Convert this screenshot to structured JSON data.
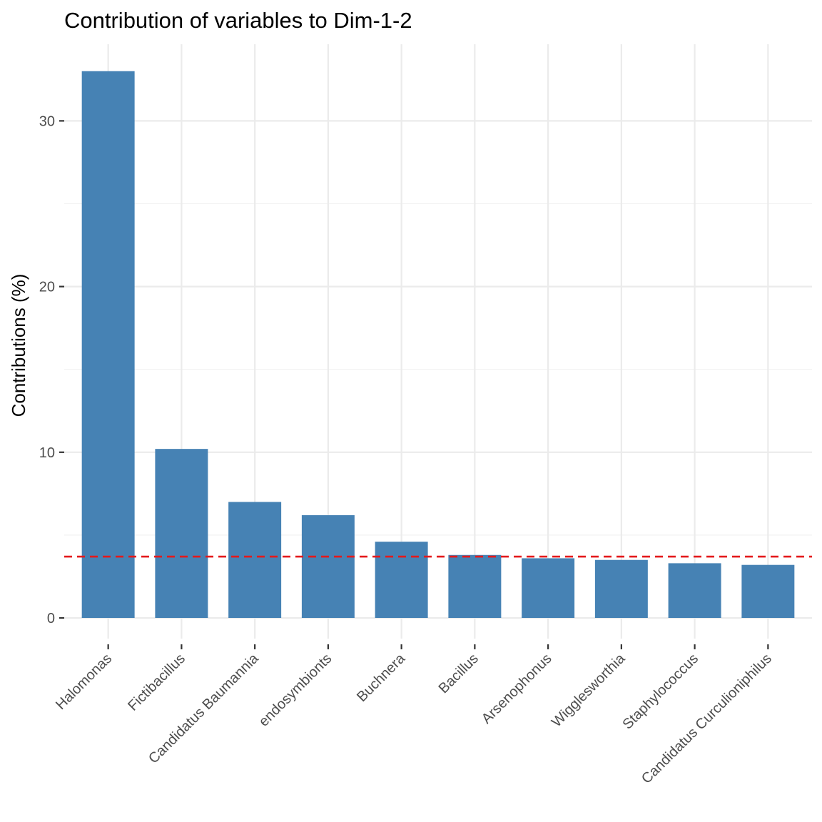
{
  "chart_data": {
    "type": "bar",
    "title": "Contribution of variables to Dim-1-2",
    "xlabel": "",
    "ylabel": "Contributions (%)",
    "categories": [
      "Halomonas",
      "Fictibacillus",
      "Candidatus Baumannia",
      "endosymbionts",
      "Buchnera",
      "Bacillus",
      "Arsenophonus",
      "Wigglesworthia",
      "Staphylococcus",
      "Candidatus Curculioniphilus"
    ],
    "values": [
      33.0,
      10.2,
      7.0,
      6.2,
      4.6,
      3.8,
      3.6,
      3.5,
      3.3,
      3.2
    ],
    "reference_line": {
      "value": 3.7,
      "style": "dashed",
      "color": "#e41a1c"
    },
    "yticks": [
      0,
      10,
      20,
      30
    ],
    "ylim": [
      -1.2,
      34.5
    ],
    "grid": true,
    "bar_color": "#4682b4"
  }
}
